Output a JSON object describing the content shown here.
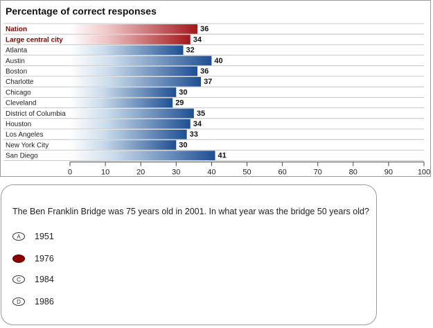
{
  "chart_data": {
    "type": "bar",
    "orientation": "horizontal",
    "title": "Percentage of correct responses",
    "categories": [
      "Nation",
      "Large central city",
      "Atlanta",
      "Austin",
      "Boston",
      "Charlotte",
      "Chicago",
      "Cleveland",
      "District of Columbia",
      "Houston",
      "Los Angeles",
      "New York City",
      "San Diego"
    ],
    "values": [
      36,
      34,
      32,
      40,
      36,
      37,
      30,
      29,
      35,
      34,
      33,
      30,
      41
    ],
    "highlighted_categories": [
      "Nation",
      "Large central city"
    ],
    "xlim": [
      0,
      100
    ],
    "xticks": [
      "0",
      "10",
      "20",
      "30",
      "40",
      "50",
      "60",
      "70",
      "80",
      "90",
      "100"
    ],
    "grid": true,
    "colors": {
      "highlight": "#a3161b",
      "default": "#1e4f93",
      "highlight_text": "#8b0000"
    }
  },
  "question": {
    "text": "The Ben Franklin Bridge was 75 years old in 2001. In what year was the bridge 50 years old?",
    "choices": [
      {
        "letter": "A",
        "label": "1951",
        "selected": false
      },
      {
        "letter": "B",
        "label": "1976",
        "selected": true
      },
      {
        "letter": "C",
        "label": "1984",
        "selected": false
      },
      {
        "letter": "D",
        "label": "1986",
        "selected": false
      }
    ]
  }
}
